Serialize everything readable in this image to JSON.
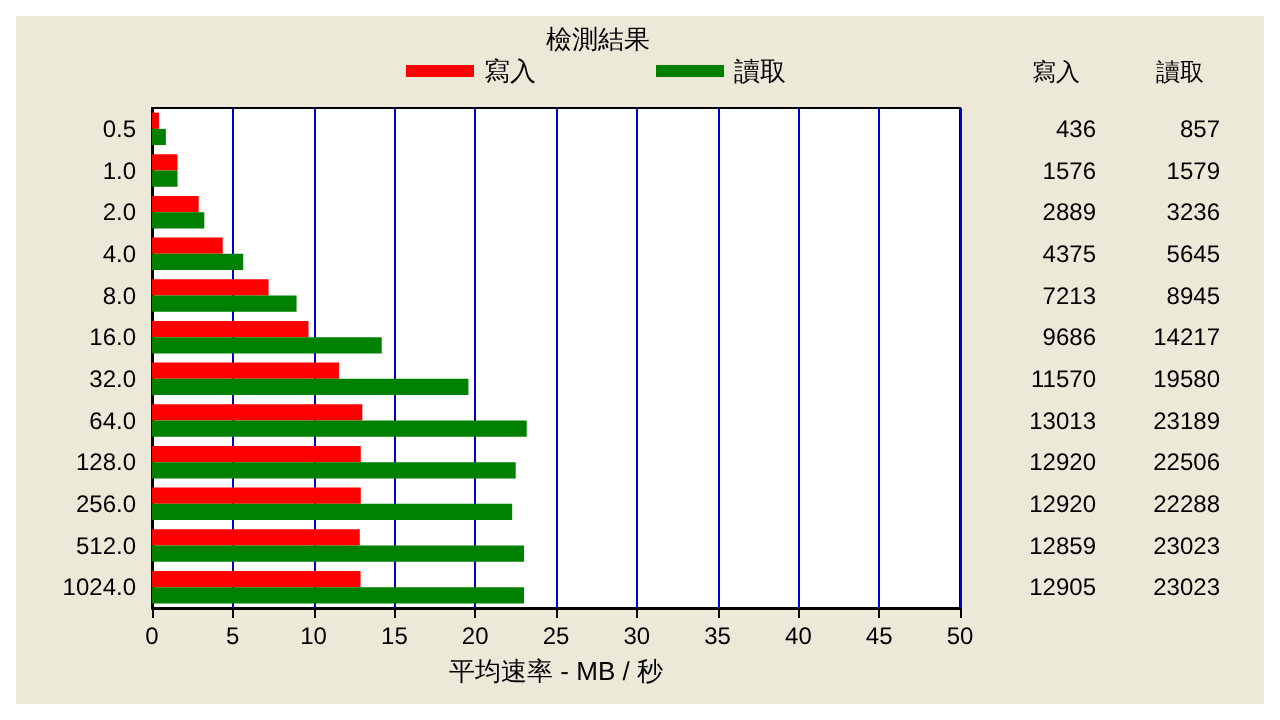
{
  "chart_data": {
    "type": "bar",
    "orientation": "horizontal",
    "title": "檢測結果",
    "xlabel": "平均速率 - MB / 秒",
    "categories": [
      "0.5",
      "1.0",
      "2.0",
      "4.0",
      "8.0",
      "16.0",
      "32.0",
      "64.0",
      "128.0",
      "256.0",
      "512.0",
      "1024.0"
    ],
    "series": [
      {
        "name": "寫入",
        "color": "#ff0000",
        "values": [
          0.436,
          1.576,
          2.889,
          4.375,
          7.213,
          9.686,
          11.57,
          13.013,
          12.92,
          12.92,
          12.859,
          12.905
        ]
      },
      {
        "name": "讀取",
        "color": "#008000",
        "values": [
          0.857,
          1.579,
          3.236,
          5.645,
          8.945,
          14.217,
          19.58,
          23.189,
          22.506,
          22.288,
          23.023,
          23.023
        ]
      }
    ],
    "annotations": [
      "436",
      "857",
      "1576",
      "1579",
      "2889",
      "3236",
      "4375",
      "5645",
      "7213",
      "8945",
      "9686",
      "14217",
      "11570",
      "19580",
      "13013",
      "23189",
      "12920",
      "22506",
      "12920",
      "22288",
      "12859",
      "23023",
      "12905",
      "23023"
    ],
    "xlim": [
      0,
      50
    ],
    "xticks": [
      0,
      5,
      10,
      15,
      20,
      25,
      30,
      35,
      40,
      45,
      50
    ],
    "grid": "x",
    "legend": "top"
  }
}
